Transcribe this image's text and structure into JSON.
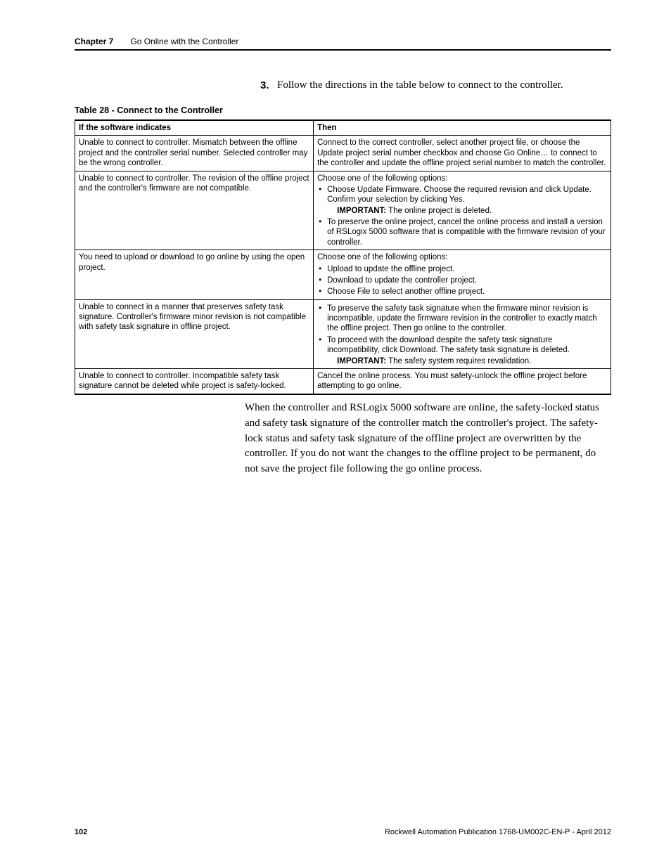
{
  "header": {
    "chapter": "Chapter 7",
    "title": "Go Online with the Controller"
  },
  "step": {
    "number": "3.",
    "text": "Follow the directions in the table below to connect to the controller."
  },
  "table": {
    "caption": "Table 28 - Connect to the Controller",
    "columns": [
      "If the software indicates",
      "Then"
    ],
    "rows": [
      {
        "indication": "Unable to connect to controller. Mismatch between the offline project and the controller serial number. Selected controller may be the wrong controller.",
        "then_text": "Connect to the correct controller, select another project file, or choose the Update project serial number checkbox and choose Go Online… to connect to the controller and update the offline project serial number to match the controller."
      },
      {
        "indication": "Unable to connect to controller. The revision of the offline project and the controller's firmware are not compatible.",
        "then_intro": "Choose one of the following options:",
        "bullets": [
          {
            "text": "Choose Update Firmware. Choose the required revision and click Update. Confirm your selection by clicking Yes.",
            "sub_important": "IMPORTANT:",
            "sub": " The online project is deleted."
          },
          {
            "text": "To preserve the online project, cancel the online process and install a version of RSLogix 5000 software that is compatible with the firmware revision of your controller."
          }
        ]
      },
      {
        "indication": "You need to upload or download to go online by using the open project.",
        "then_intro": "Choose one of the following options:",
        "bullets": [
          {
            "text": "Upload to update the offline project."
          },
          {
            "text": "Download to update the controller project."
          },
          {
            "text": "Choose File to select another offline project."
          }
        ]
      },
      {
        "indication": "Unable to connect in a manner that preserves safety task signature. Controller's firmware minor revision is not compatible with safety task signature in offline project.",
        "bullets": [
          {
            "text": "To preserve the safety task signature when the firmware minor revision is incompatible, update the firmware revision in the controller to exactly match the offline project. Then go online to the controller."
          },
          {
            "text": "To proceed with the download despite the safety task signature incompatibility, click Download. The safety task signature is deleted.",
            "sub_important": "IMPORTANT:",
            "sub": " The safety system requires revalidation."
          }
        ]
      },
      {
        "indication": "Unable to connect to controller. Incompatible safety task signature cannot be deleted while project is safety-locked.",
        "then_text": "Cancel the online process. You must safety-unlock the offline project before attempting to go online."
      }
    ]
  },
  "body_paragraph": "When the controller and RSLogix 5000 software are online, the safety-locked status and safety task signature of the controller match the controller's project. The safety-lock status and safety task signature of the offline project are overwritten by the controller. If you do not want the changes to the offline project to be permanent, do not save the project file following the go online process.",
  "footer": {
    "page": "102",
    "pub": "Rockwell Automation Publication 1768-UM002C-EN-P - April 2012"
  }
}
